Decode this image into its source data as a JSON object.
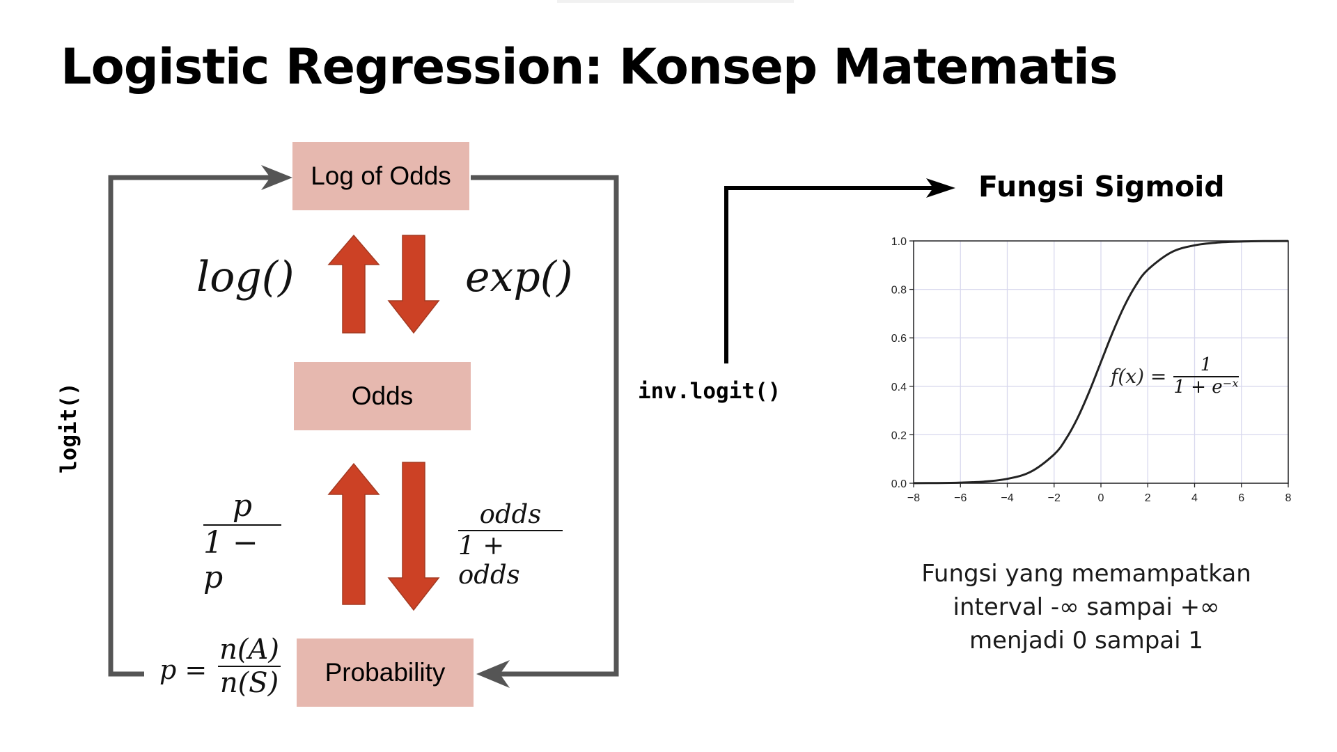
{
  "title": "Logistic Regression: Konsep Matematis",
  "diagram": {
    "boxes": {
      "log_odds": "Log of Odds",
      "odds": "Odds",
      "probability": "Probability"
    },
    "functions": {
      "log": "log()",
      "exp": "exp()"
    },
    "formulas": {
      "odds_num": "p",
      "odds_den": "1 − p",
      "prob_num": "odds",
      "prob_den": "1 + odds",
      "p_eq": "p =",
      "p_num": "n(A)",
      "p_den": "n(S)"
    },
    "logit_label": "logit()",
    "inv_logit_label": "inv.logit()",
    "colors": {
      "box": "#e6b8af",
      "arrow": "#cc4125",
      "loop": "#555555"
    }
  },
  "sigmoid": {
    "title": "Fungsi Sigmoid",
    "formula_lhs": "f(x) =",
    "formula_num": "1",
    "formula_den": "1 + e⁻ˣ",
    "description": [
      "Fungsi yang memampatkan",
      "interval -∞ sampai +∞",
      "menjadi 0 sampai 1"
    ]
  },
  "chart_data": {
    "type": "line",
    "function": "sigmoid",
    "xlim": [
      -8,
      8
    ],
    "ylim": [
      0,
      1
    ],
    "x_ticks": [
      -8,
      -6,
      -4,
      -2,
      0,
      2,
      4,
      6,
      8
    ],
    "y_ticks": [
      0.0,
      0.2,
      0.4,
      0.6,
      0.8,
      1.0
    ],
    "x_tick_labels": [
      "−8",
      "−6",
      "−4",
      "−2",
      "0",
      "2",
      "4",
      "6",
      "8"
    ],
    "y_tick_labels": [
      "0.0",
      "0.2",
      "0.4",
      "0.6",
      "0.8",
      "1.0"
    ],
    "grid": true,
    "series": [
      {
        "x": [
          -8,
          -7,
          -6,
          -5,
          -4,
          -3,
          -2,
          -1.5,
          -1,
          -0.5,
          0,
          0.5,
          1,
          1.5,
          2,
          3,
          4,
          5,
          6,
          7,
          8
        ],
        "y": [
          0.0003,
          0.0009,
          0.0025,
          0.0067,
          0.018,
          0.047,
          0.119,
          0.182,
          0.269,
          0.378,
          0.5,
          0.622,
          0.731,
          0.818,
          0.881,
          0.953,
          0.982,
          0.9933,
          0.9975,
          0.9991,
          0.9997
        ]
      }
    ]
  }
}
